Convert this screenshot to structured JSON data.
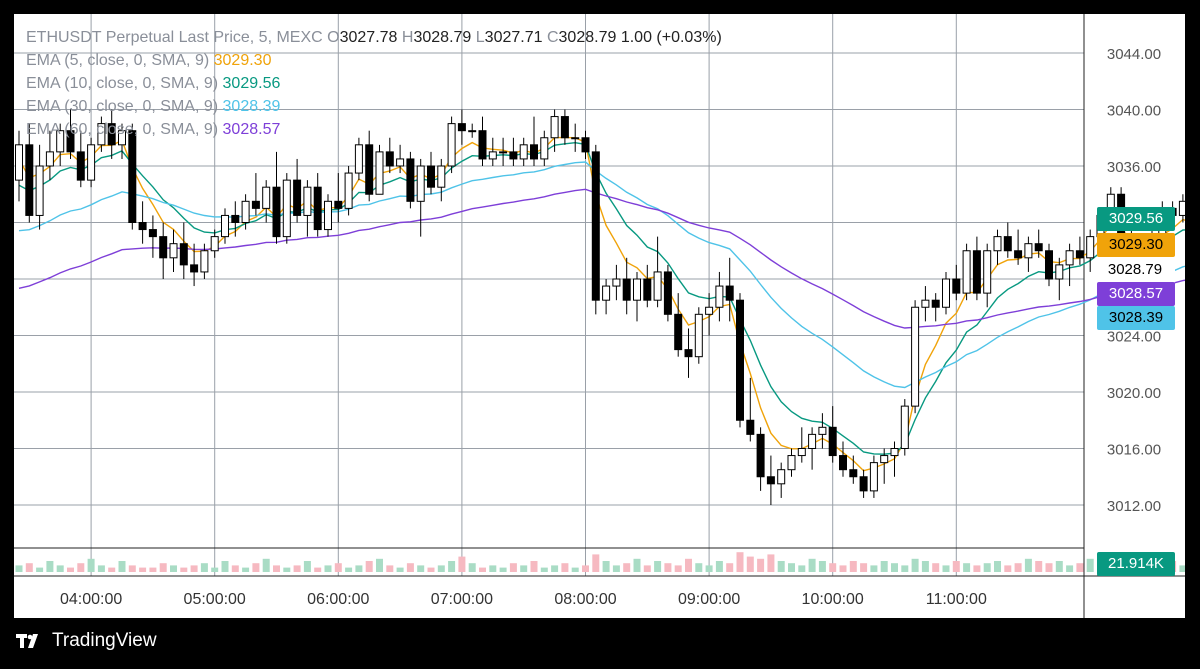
{
  "header": {
    "symbol": "ETHUSDT Perpetual Last Price, 5, MEXC",
    "o_label": "O",
    "o": "3027.78",
    "h_label": "H",
    "h": "3028.79",
    "l_label": "L",
    "l": "3027.71",
    "c_label": "C",
    "c": "3028.79",
    "change": "1.00 (+0.03%)"
  },
  "indicators": [
    {
      "label": "EMA (5, close, 0, SMA, 9)",
      "value": "3029.30",
      "color": "#f0a30a"
    },
    {
      "label": "EMA (10, close, 0, SMA, 9)",
      "value": "3029.56",
      "color": "#089981"
    },
    {
      "label": "EMA (30, close, 0, SMA, 9)",
      "value": "3028.39",
      "color": "#4fc3e8"
    },
    {
      "label": "EMA (60, close, 0, SMA, 9)",
      "value": "3028.57",
      "color": "#7e3fd8"
    }
  ],
  "price_tags": [
    {
      "value": "3029.56",
      "bg": "#089981",
      "fg": "#ffffff"
    },
    {
      "value": "3029.30",
      "bg": "#f0a30a",
      "fg": "#000000"
    },
    {
      "value": "3028.79",
      "bg": "#ffffff",
      "fg": "#000000"
    },
    {
      "value": "3028.57",
      "bg": "#7e3fd8",
      "fg": "#ffffff"
    },
    {
      "value": "3028.39",
      "bg": "#4fc3e8",
      "fg": "#000000"
    }
  ],
  "volume_tag": {
    "value": "21.914K",
    "bg": "#089981"
  },
  "brand": "TradingView",
  "chart_data": {
    "type": "candlestick",
    "interval_minutes": 5,
    "y_tick_labels": [
      "3044.00",
      "3040.00",
      "3036.00",
      "3024.00",
      "3020.00",
      "3016.00",
      "3012.00"
    ],
    "ylim": [
      3010,
      3046
    ],
    "x_tick_labels": [
      "04:00:00",
      "05:00:00",
      "06:00:00",
      "07:00:00",
      "08:00:00",
      "09:00:00",
      "10:00:00",
      "11:00:00"
    ],
    "x_start": "03:25",
    "grid": true,
    "candles": [
      [
        3035.0,
        3038.5,
        3033.5,
        3037.5
      ],
      [
        3037.5,
        3039.0,
        3032.0,
        3032.5
      ],
      [
        3032.5,
        3037.5,
        3031.5,
        3036.0
      ],
      [
        3036.0,
        3038.5,
        3035.0,
        3037.0
      ],
      [
        3037.0,
        3039.0,
        3036.0,
        3038.5
      ],
      [
        3038.5,
        3040.0,
        3036.5,
        3037.0
      ],
      [
        3037.0,
        3038.5,
        3034.5,
        3035.0
      ],
      [
        3035.0,
        3038.0,
        3034.5,
        3037.5
      ],
      [
        3037.5,
        3039.5,
        3037.0,
        3039.0
      ],
      [
        3039.0,
        3040.0,
        3036.5,
        3037.5
      ],
      [
        3037.5,
        3039.0,
        3036.5,
        3038.5
      ],
      [
        3038.5,
        3039.0,
        3031.5,
        3032.0
      ],
      [
        3032.0,
        3033.5,
        3030.5,
        3031.5
      ],
      [
        3031.5,
        3032.5,
        3029.5,
        3031.0
      ],
      [
        3031.0,
        3032.0,
        3028.0,
        3029.5
      ],
      [
        3029.5,
        3031.5,
        3028.5,
        3030.5
      ],
      [
        3030.5,
        3032.0,
        3028.0,
        3029.0
      ],
      [
        3029.0,
        3030.5,
        3027.5,
        3028.5
      ],
      [
        3028.5,
        3030.5,
        3028.0,
        3030.0
      ],
      [
        3030.0,
        3031.5,
        3029.5,
        3031.0
      ],
      [
        3031.0,
        3033.0,
        3030.5,
        3032.5
      ],
      [
        3032.5,
        3033.5,
        3031.0,
        3032.0
      ],
      [
        3032.0,
        3034.0,
        3031.5,
        3033.5
      ],
      [
        3033.5,
        3035.5,
        3032.5,
        3033.0
      ],
      [
        3033.0,
        3035.0,
        3032.0,
        3034.5
      ],
      [
        3034.5,
        3037.0,
        3030.5,
        3031.0
      ],
      [
        3031.0,
        3035.5,
        3030.5,
        3035.0
      ],
      [
        3035.0,
        3036.5,
        3032.0,
        3032.5
      ],
      [
        3032.5,
        3035.0,
        3031.0,
        3034.5
      ],
      [
        3034.5,
        3035.5,
        3031.0,
        3031.5
      ],
      [
        3031.5,
        3034.0,
        3031.0,
        3033.5
      ],
      [
        3033.5,
        3035.5,
        3032.0,
        3033.0
      ],
      [
        3033.0,
        3036.0,
        3032.5,
        3035.5
      ],
      [
        3035.5,
        3038.0,
        3035.0,
        3037.5
      ],
      [
        3037.5,
        3038.5,
        3033.5,
        3034.0
      ],
      [
        3034.0,
        3037.5,
        3034.0,
        3037.0
      ],
      [
        3037.0,
        3038.0,
        3035.5,
        3036.0
      ],
      [
        3036.0,
        3037.5,
        3035.5,
        3036.5
      ],
      [
        3036.5,
        3037.0,
        3033.0,
        3033.5
      ],
      [
        3033.5,
        3036.5,
        3031.0,
        3036.0
      ],
      [
        3036.0,
        3037.0,
        3034.0,
        3034.5
      ],
      [
        3034.5,
        3036.5,
        3033.5,
        3036.0
      ],
      [
        3036.0,
        3039.5,
        3035.5,
        3039.0
      ],
      [
        3039.0,
        3040.0,
        3037.5,
        3038.5
      ],
      [
        3038.5,
        3039.0,
        3038.0,
        3038.5
      ],
      [
        3038.5,
        3039.5,
        3036.0,
        3036.5
      ],
      [
        3036.5,
        3038.0,
        3036.0,
        3037.0
      ],
      [
        3037.0,
        3038.0,
        3036.0,
        3037.0
      ],
      [
        3037.0,
        3038.0,
        3036.0,
        3036.5
      ],
      [
        3036.5,
        3038.0,
        3036.0,
        3037.5
      ],
      [
        3037.5,
        3039.5,
        3036.0,
        3036.5
      ],
      [
        3036.5,
        3038.5,
        3036.0,
        3038.0
      ],
      [
        3038.0,
        3040.0,
        3037.0,
        3039.5
      ],
      [
        3039.5,
        3040.0,
        3037.5,
        3038.0
      ],
      [
        3038.0,
        3039.0,
        3037.0,
        3038.0
      ],
      [
        3038.0,
        3038.5,
        3036.5,
        3037.0
      ],
      [
        3037.0,
        3037.5,
        3025.5,
        3026.5
      ],
      [
        3026.5,
        3028.0,
        3025.5,
        3027.5
      ],
      [
        3027.5,
        3029.0,
        3026.5,
        3028.0
      ],
      [
        3028.0,
        3029.5,
        3025.5,
        3026.5
      ],
      [
        3026.5,
        3028.5,
        3025.0,
        3028.0
      ],
      [
        3028.0,
        3029.0,
        3026.0,
        3026.5
      ],
      [
        3026.5,
        3031.0,
        3026.0,
        3028.5
      ],
      [
        3028.5,
        3029.0,
        3025.0,
        3025.5
      ],
      [
        3025.5,
        3027.0,
        3022.5,
        3023.0
      ],
      [
        3023.0,
        3024.5,
        3021.0,
        3022.5
      ],
      [
        3022.5,
        3026.0,
        3022.0,
        3025.5
      ],
      [
        3025.5,
        3027.0,
        3024.0,
        3026.0
      ],
      [
        3026.0,
        3028.5,
        3025.0,
        3027.5
      ],
      [
        3027.5,
        3029.5,
        3025.0,
        3026.5
      ],
      [
        3026.5,
        3027.0,
        3017.5,
        3018.0
      ],
      [
        3018.0,
        3021.0,
        3016.5,
        3017.0
      ],
      [
        3017.0,
        3017.5,
        3013.0,
        3014.0
      ],
      [
        3014.0,
        3015.5,
        3012.0,
        3013.5
      ],
      [
        3013.5,
        3015.0,
        3012.5,
        3014.5
      ],
      [
        3014.5,
        3016.0,
        3014.0,
        3015.5
      ],
      [
        3015.5,
        3017.5,
        3015.0,
        3016.0
      ],
      [
        3016.0,
        3017.5,
        3014.5,
        3017.0
      ],
      [
        3017.0,
        3018.5,
        3016.0,
        3017.5
      ],
      [
        3017.5,
        3019.0,
        3015.0,
        3015.5
      ],
      [
        3015.5,
        3016.5,
        3014.0,
        3014.5
      ],
      [
        3014.5,
        3015.5,
        3013.5,
        3014.0
      ],
      [
        3014.0,
        3014.5,
        3012.5,
        3013.0
      ],
      [
        3013.0,
        3015.5,
        3012.5,
        3015.0
      ],
      [
        3015.0,
        3016.0,
        3013.5,
        3015.5
      ],
      [
        3015.5,
        3016.5,
        3014.0,
        3016.0
      ],
      [
        3016.0,
        3019.5,
        3015.5,
        3019.0
      ],
      [
        3019.0,
        3026.5,
        3018.5,
        3026.0
      ],
      [
        3026.0,
        3027.5,
        3025.0,
        3026.5
      ],
      [
        3026.5,
        3027.0,
        3025.0,
        3026.0
      ],
      [
        3026.0,
        3028.5,
        3025.5,
        3028.0
      ],
      [
        3028.0,
        3029.0,
        3026.5,
        3027.0
      ],
      [
        3027.0,
        3030.5,
        3026.5,
        3030.0
      ],
      [
        3030.0,
        3031.0,
        3026.5,
        3027.0
      ],
      [
        3027.0,
        3030.5,
        3026.0,
        3030.0
      ],
      [
        3030.0,
        3031.5,
        3029.0,
        3031.0
      ],
      [
        3031.0,
        3032.0,
        3029.5,
        3030.0
      ],
      [
        3030.0,
        3031.5,
        3029.0,
        3029.5
      ],
      [
        3029.5,
        3031.0,
        3028.5,
        3030.5
      ],
      [
        3030.5,
        3031.5,
        3029.5,
        3030.0
      ],
      [
        3030.0,
        3030.5,
        3027.5,
        3028.0
      ],
      [
        3028.0,
        3029.5,
        3026.5,
        3029.0
      ],
      [
        3029.0,
        3030.5,
        3027.5,
        3030.0
      ],
      [
        3030.0,
        3031.0,
        3029.0,
        3029.5
      ],
      [
        3029.5,
        3031.5,
        3028.5,
        3031.0
      ],
      [
        3031.0,
        3033.0,
        3029.5,
        3032.5
      ],
      [
        3032.5,
        3034.5,
        3031.5,
        3034.0
      ],
      [
        3034.0,
        3034.5,
        3030.5,
        3031.0
      ],
      [
        3031.0,
        3032.0,
        3028.5,
        3029.0
      ],
      [
        3029.0,
        3030.5,
        3028.5,
        3030.0
      ],
      [
        3030.0,
        3031.5,
        3028.0,
        3029.5
      ],
      [
        3029.5,
        3033.5,
        3029.0,
        3033.0
      ],
      [
        3033.0,
        3033.5,
        3031.5,
        3032.5
      ],
      [
        3032.5,
        3034.0,
        3032.0,
        3033.5
      ],
      [
        3033.5,
        3034.0,
        3031.0,
        3031.5
      ],
      [
        3031.0,
        3032.0,
        3029.5,
        3030.0
      ],
      [
        3030.0,
        3030.5,
        3027.5,
        3028.0
      ],
      [
        3027.78,
        3028.79,
        3027.71,
        3028.79
      ]
    ],
    "ema": [
      {
        "name": "EMA (5, close, 0, SMA, 9)",
        "period": 5
      },
      {
        "name": "EMA (10, close, 0, SMA, 9)",
        "period": 10
      },
      {
        "name": "EMA (30, close, 0, SMA, 9)",
        "period": 30
      },
      {
        "name": "EMA (60, close, 0, SMA, 9)",
        "period": 60
      }
    ],
    "ema_start": [
      3036.0,
      3034.0,
      3031.0,
      3027.0
    ],
    "volumes": [
      3,
      4,
      2,
      5,
      3,
      2,
      4,
      6,
      3,
      2,
      5,
      3,
      2,
      2,
      4,
      3,
      2,
      3,
      4,
      2,
      5,
      3,
      2,
      4,
      6,
      3,
      2,
      3,
      5,
      2,
      3,
      4,
      2,
      3,
      5,
      6,
      3,
      2,
      4,
      3,
      2,
      3,
      5,
      7,
      4,
      2,
      3,
      2,
      4,
      3,
      5,
      2,
      3,
      4,
      2,
      3,
      8,
      5,
      3,
      4,
      6,
      3,
      5,
      4,
      3,
      6,
      4,
      3,
      5,
      4,
      9,
      7,
      6,
      8,
      5,
      4,
      3,
      6,
      5,
      4,
      3,
      5,
      4,
      3,
      5,
      4,
      3,
      6,
      5,
      4,
      3,
      5,
      4,
      3,
      4,
      5,
      3,
      4,
      6,
      5,
      4,
      5,
      3,
      4,
      6,
      5,
      4,
      3,
      5,
      4,
      3,
      4,
      5,
      3,
      4,
      5,
      4,
      3,
      5,
      2
    ]
  }
}
